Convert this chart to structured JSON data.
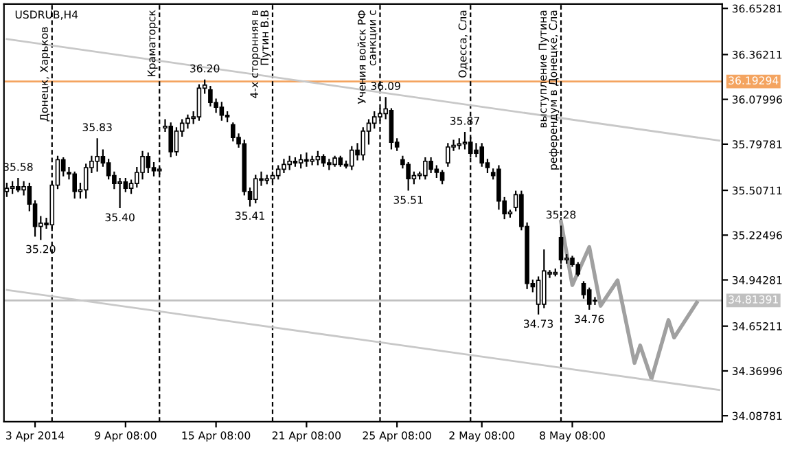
{
  "chart_data": {
    "type": "candlestick",
    "title": "USDRUB,H4",
    "categories": [
      null,
      null,
      null,
      null,
      null,
      "3 Apr 2014",
      null,
      null,
      null,
      null,
      null,
      null,
      null,
      null,
      null,
      null,
      null,
      null,
      null,
      null,
      null,
      "9 Apr 08:00",
      null,
      null,
      null,
      null,
      null,
      null,
      null,
      null,
      null,
      null,
      null,
      null,
      null,
      null,
      null,
      "15 Apr 08:00",
      null,
      null,
      null,
      null,
      null,
      null,
      null,
      null,
      null,
      null,
      null,
      null,
      null,
      null,
      null,
      "21 Apr 08:00",
      null,
      null,
      null,
      null,
      null,
      null,
      null,
      null,
      null,
      null,
      null,
      null,
      null,
      null,
      null,
      "25 Apr 08:00",
      null,
      null,
      null,
      null,
      null,
      null,
      null,
      null,
      null,
      null,
      null,
      null,
      null,
      null,
      "2 May 08:00",
      null,
      null,
      null,
      null,
      null,
      null,
      null,
      null,
      null,
      null,
      null,
      null,
      null,
      null,
      null,
      "8 May 08:00",
      null,
      null,
      null,
      null,
      null,
      null,
      null,
      null,
      null,
      null,
      null,
      null,
      null,
      null,
      null,
      null,
      null,
      null,
      null,
      null,
      null,
      null,
      null,
      null,
      null,
      null
    ],
    "ohlc": [
      [
        35.5,
        35.55,
        35.47,
        35.52
      ],
      [
        35.52,
        35.56,
        35.49,
        35.53
      ],
      [
        35.53,
        35.58,
        35.5,
        35.51
      ],
      [
        35.51,
        35.56,
        35.48,
        35.53
      ],
      [
        35.53,
        35.55,
        35.38,
        35.42
      ],
      [
        35.42,
        35.44,
        35.22,
        35.28
      ],
      [
        35.28,
        35.34,
        35.2,
        35.3
      ],
      [
        35.3,
        35.33,
        35.27,
        35.29
      ],
      [
        35.29,
        35.56,
        35.27,
        35.54
      ],
      [
        35.54,
        35.72,
        35.52,
        35.7
      ],
      [
        35.7,
        35.71,
        35.6,
        35.63
      ],
      [
        35.62,
        35.65,
        35.58,
        35.61
      ],
      [
        35.61,
        35.62,
        35.46,
        35.5
      ],
      [
        35.5,
        35.55,
        35.46,
        35.51
      ],
      [
        35.51,
        35.67,
        35.46,
        35.65
      ],
      [
        35.65,
        35.72,
        35.62,
        35.69
      ],
      [
        35.69,
        35.83,
        35.63,
        35.72
      ],
      [
        35.72,
        35.76,
        35.66,
        35.68
      ],
      [
        35.68,
        35.7,
        35.58,
        35.6
      ],
      [
        35.6,
        35.62,
        35.52,
        35.55
      ],
      [
        35.55,
        35.58,
        35.4,
        35.56
      ],
      [
        35.56,
        35.58,
        35.5,
        35.52
      ],
      [
        35.52,
        35.57,
        35.49,
        35.55
      ],
      [
        35.55,
        35.65,
        35.53,
        35.62
      ],
      [
        35.62,
        35.75,
        35.58,
        35.72
      ],
      [
        35.72,
        35.74,
        35.62,
        35.65
      ],
      [
        35.65,
        35.68,
        35.6,
        35.63
      ],
      [
        35.63,
        35.65,
        35.61,
        35.64
      ],
      [
        35.9,
        35.95,
        35.88,
        35.91
      ],
      [
        35.91,
        35.93,
        35.72,
        35.75
      ],
      [
        35.75,
        35.9,
        35.73,
        35.88
      ],
      [
        35.88,
        35.95,
        35.85,
        35.93
      ],
      [
        35.93,
        35.98,
        35.9,
        35.96
      ],
      [
        35.96,
        36.0,
        35.93,
        35.97
      ],
      [
        35.97,
        36.17,
        35.95,
        36.15
      ],
      [
        36.15,
        36.2,
        36.12,
        36.17
      ],
      [
        36.14,
        36.16,
        36.04,
        36.06
      ],
      [
        36.06,
        36.08,
        36.0,
        36.03
      ],
      [
        36.03,
        36.06,
        35.95,
        35.98
      ],
      [
        35.98,
        36.0,
        35.94,
        35.97
      ],
      [
        35.92,
        35.93,
        35.82,
        35.84
      ],
      [
        35.84,
        35.86,
        35.78,
        35.8
      ],
      [
        35.8,
        35.82,
        35.48,
        35.5
      ],
      [
        35.5,
        35.52,
        35.41,
        35.45
      ],
      [
        35.45,
        35.6,
        35.43,
        35.58
      ],
      [
        35.58,
        35.62,
        35.54,
        35.57
      ],
      [
        35.57,
        35.6,
        35.55,
        35.58
      ],
      [
        35.58,
        35.62,
        35.56,
        35.6
      ],
      [
        35.6,
        35.66,
        35.58,
        35.64
      ],
      [
        35.64,
        35.7,
        35.62,
        35.67
      ],
      [
        35.67,
        35.72,
        35.64,
        35.69
      ],
      [
        35.69,
        35.71,
        35.66,
        35.68
      ],
      [
        35.68,
        35.73,
        35.65,
        35.7
      ],
      [
        35.7,
        35.74,
        35.66,
        35.69
      ],
      [
        35.69,
        35.72,
        35.67,
        35.7
      ],
      [
        35.7,
        35.75,
        35.67,
        35.72
      ],
      [
        35.72,
        35.73,
        35.66,
        35.68
      ],
      [
        35.68,
        35.7,
        35.64,
        35.67
      ],
      [
        35.67,
        35.72,
        35.66,
        35.71
      ],
      [
        35.71,
        35.72,
        35.66,
        35.67
      ],
      [
        35.67,
        35.69,
        35.65,
        35.66
      ],
      [
        35.66,
        35.78,
        35.64,
        35.76
      ],
      [
        35.76,
        35.8,
        35.7,
        35.73
      ],
      [
        35.73,
        35.9,
        35.7,
        35.88
      ],
      [
        35.88,
        35.95,
        35.8,
        35.93
      ],
      [
        35.93,
        36.0,
        35.9,
        35.97
      ],
      [
        35.97,
        36.02,
        35.95,
        35.99
      ],
      [
        35.99,
        36.09,
        35.96,
        36.02
      ],
      [
        36.01,
        36.02,
        35.77,
        35.81
      ],
      [
        35.81,
        35.83,
        35.76,
        35.78
      ],
      [
        35.7,
        35.72,
        35.65,
        35.67
      ],
      [
        35.67,
        35.68,
        35.51,
        35.58
      ],
      [
        35.58,
        35.62,
        35.55,
        35.6
      ],
      [
        35.6,
        35.62,
        35.58,
        35.61
      ],
      [
        35.6,
        35.71,
        35.58,
        35.69
      ],
      [
        35.69,
        35.71,
        35.62,
        35.64
      ],
      [
        35.64,
        35.66,
        35.59,
        35.62
      ],
      [
        35.62,
        35.63,
        35.55,
        35.57
      ],
      [
        35.68,
        35.8,
        35.66,
        35.78
      ],
      [
        35.78,
        35.82,
        35.76,
        35.79
      ],
      [
        35.79,
        35.83,
        35.77,
        35.8
      ],
      [
        35.8,
        35.87,
        35.77,
        35.81
      ],
      [
        35.81,
        35.84,
        35.72,
        35.74
      ],
      [
        35.76,
        35.8,
        35.72,
        35.74
      ],
      [
        35.78,
        35.8,
        35.66,
        35.68
      ],
      [
        35.68,
        35.7,
        35.62,
        35.65
      ],
      [
        35.62,
        35.64,
        35.58,
        35.6
      ],
      [
        35.64,
        35.66,
        35.39,
        35.44
      ],
      [
        35.44,
        35.46,
        35.33,
        35.36
      ],
      [
        35.36,
        35.38,
        35.34,
        35.37
      ],
      [
        35.4,
        35.5,
        35.38,
        35.48
      ],
      [
        35.48,
        35.5,
        35.26,
        35.28
      ],
      [
        35.28,
        35.3,
        34.89,
        34.92
      ],
      [
        34.92,
        34.94,
        34.87,
        34.9
      ],
      [
        34.79,
        34.96,
        34.73,
        34.94
      ],
      [
        34.79,
        35.13,
        34.77,
        35.0
      ],
      [
        34.98,
        35.0,
        34.96,
        34.99
      ],
      [
        34.98,
        35.01,
        34.97,
        34.99
      ],
      [
        35.21,
        35.28,
        35.05,
        35.07
      ],
      [
        35.07,
        35.1,
        35.05,
        35.08
      ],
      [
        35.08,
        35.09,
        35.03,
        35.04
      ],
      [
        35.04,
        35.05,
        34.97,
        34.98
      ],
      [
        34.92,
        34.93,
        34.83,
        34.85
      ],
      [
        34.88,
        34.89,
        34.76,
        34.79
      ],
      [
        34.81,
        34.83,
        34.79,
        34.81
      ],
      null,
      null,
      null,
      null,
      null,
      null,
      null,
      null,
      null,
      null,
      null,
      null,
      null,
      null,
      null,
      null,
      null,
      null,
      null,
      null,
      null,
      null
    ],
    "series": [
      {
        "type": "line",
        "color": "#a0a0a0",
        "values": [
          null,
          null,
          null,
          null,
          null,
          null,
          null,
          null,
          null,
          null,
          null,
          null,
          null,
          null,
          null,
          null,
          null,
          null,
          null,
          null,
          null,
          null,
          null,
          null,
          null,
          null,
          null,
          null,
          null,
          null,
          null,
          null,
          null,
          null,
          null,
          null,
          null,
          null,
          null,
          null,
          null,
          null,
          null,
          null,
          null,
          null,
          null,
          null,
          null,
          null,
          null,
          null,
          null,
          null,
          null,
          null,
          null,
          null,
          null,
          null,
          null,
          null,
          null,
          null,
          null,
          null,
          null,
          null,
          null,
          null,
          null,
          null,
          null,
          null,
          null,
          null,
          null,
          null,
          null,
          null,
          null,
          null,
          null,
          null,
          null,
          null,
          null,
          null,
          null,
          null,
          null,
          null,
          null,
          null,
          null,
          null,
          null,
          null,
          35.31,
          null,
          34.91,
          null,
          null,
          35.15,
          null,
          34.78,
          null,
          null,
          34.94,
          null,
          null,
          34.42,
          34.53,
          null,
          34.32,
          null,
          null,
          34.69,
          34.58,
          null,
          null,
          null,
          34.8,
          null,
          null,
          null,
          null
        ]
      },
      {
        "type": "line",
        "color": "#c8c8c8",
        "values": [
          36.46,
          null,
          null,
          null,
          null,
          null,
          null,
          null,
          null,
          null,
          null,
          null,
          null,
          null,
          null,
          null,
          null,
          null,
          null,
          null,
          null,
          null,
          null,
          null,
          null,
          null,
          null,
          null,
          null,
          null,
          null,
          null,
          null,
          null,
          null,
          null,
          null,
          null,
          null,
          null,
          null,
          null,
          null,
          null,
          null,
          null,
          null,
          null,
          null,
          null,
          null,
          null,
          null,
          null,
          null,
          null,
          null,
          null,
          null,
          null,
          null,
          null,
          null,
          null,
          null,
          null,
          null,
          null,
          null,
          null,
          null,
          null,
          null,
          null,
          null,
          null,
          null,
          null,
          null,
          null,
          null,
          null,
          null,
          null,
          null,
          null,
          null,
          null,
          null,
          null,
          null,
          null,
          null,
          null,
          null,
          null,
          null,
          null,
          null,
          null,
          null,
          null,
          null,
          null,
          null,
          null,
          null,
          null,
          null,
          null,
          null,
          null,
          null,
          null,
          null,
          null,
          null,
          null,
          null,
          null,
          null,
          null,
          null,
          null,
          null,
          null,
          35.82
        ]
      },
      {
        "type": "line",
        "color": "#c8c8c8",
        "values": [
          34.88,
          null,
          null,
          null,
          null,
          null,
          null,
          null,
          null,
          null,
          null,
          null,
          null,
          null,
          null,
          null,
          null,
          null,
          null,
          null,
          null,
          null,
          null,
          null,
          null,
          null,
          null,
          null,
          null,
          null,
          null,
          null,
          null,
          null,
          null,
          null,
          null,
          null,
          null,
          null,
          null,
          null,
          null,
          null,
          null,
          null,
          null,
          null,
          null,
          null,
          null,
          null,
          null,
          null,
          null,
          null,
          null,
          null,
          null,
          null,
          null,
          null,
          null,
          null,
          null,
          null,
          null,
          null,
          null,
          null,
          null,
          null,
          null,
          null,
          null,
          null,
          null,
          null,
          null,
          null,
          null,
          null,
          null,
          null,
          null,
          null,
          null,
          null,
          null,
          null,
          null,
          null,
          null,
          null,
          null,
          null,
          null,
          null,
          null,
          null,
          null,
          null,
          null,
          null,
          null,
          null,
          null,
          null,
          null,
          null,
          null,
          null,
          null,
          null,
          null,
          null,
          null,
          null,
          null,
          null,
          null,
          null,
          null,
          null,
          null,
          null,
          34.25
        ]
      }
    ],
    "ylim": [
      34.05,
      36.68
    ],
    "yticks": [
      36.65281,
      36.36211,
      36.07996,
      35.79781,
      35.50711,
      35.22496,
      34.94281,
      34.65211,
      34.36996,
      34.08781
    ],
    "grid": false,
    "ref_lines": [
      {
        "axis": "y",
        "value": 36.19294,
        "label": "36.19294",
        "color": "#f4a460"
      },
      {
        "axis": "y",
        "value": 34.81391,
        "label": "34.81391",
        "color": "#c0c0c0"
      }
    ],
    "annotations": [
      "Донецк, Харьков",
      "Краматорск",
      "4-х сторонняя в\nПутин В.В",
      "Учения войск РФ\nсанкции с",
      "Одесса, Сла",
      "выступление Путина\nреферендум в Донецке, Сла",
      {
        "text": "35.58",
        "y": 35.58
      },
      {
        "text": "35.20",
        "y": 35.2
      },
      {
        "text": "35.83",
        "y": 35.83
      },
      {
        "text": "35.40",
        "y": 35.4
      },
      {
        "text": "36.20",
        "y": 36.2
      },
      {
        "text": "35.41",
        "y": 35.41
      },
      {
        "text": "36.09",
        "y": 36.09
      },
      {
        "text": "35.51",
        "y": 35.51
      },
      {
        "text": "35.87",
        "y": 35.87
      },
      {
        "text": "34.73",
        "y": 34.73
      },
      {
        "text": "35.28",
        "y": 35.28
      },
      {
        "text": "34.76",
        "y": 34.76
      }
    ]
  }
}
